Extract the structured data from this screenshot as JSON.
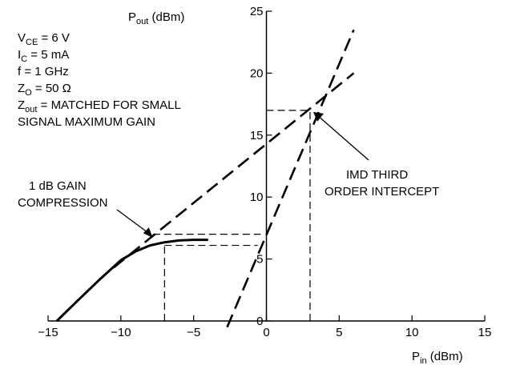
{
  "chart_data": {
    "type": "line",
    "title": "",
    "ylabel": {
      "main": "P",
      "sub": "out",
      "unit": " (dBm)"
    },
    "xlabel": {
      "main": "P",
      "sub": "in",
      "unit": " (dBm)"
    },
    "xlim": [
      -15,
      15
    ],
    "ylim": [
      0,
      25
    ],
    "x_ticks": [
      -15,
      -10,
      -5,
      0,
      5,
      10,
      15
    ],
    "x_tick_labels": [
      "−15",
      "−10",
      "−5",
      "0",
      "5",
      "10",
      "15"
    ],
    "y_ticks": [
      0,
      5,
      10,
      15,
      20,
      25
    ],
    "y_tick_labels": [
      "0",
      "5",
      "10",
      "15",
      "20",
      "25"
    ],
    "conditions": [
      {
        "main": "V",
        "sub": "CE",
        "rest": " = 6 V"
      },
      {
        "main": "I",
        "sub": "C",
        "rest": " = 5 mA"
      },
      {
        "main": "f = 1 GHz",
        "sub": "",
        "rest": ""
      },
      {
        "main": "Z",
        "sub": "O",
        "rest": " = 50 Ω"
      },
      {
        "main": "Z",
        "sub": "out",
        "rest": " = MATCHED FOR SMALL"
      },
      {
        "main": "SIGNAL MAXIMUM GAIN",
        "sub": "",
        "rest": ""
      }
    ],
    "annotations": {
      "compression": [
        "1 dB GAIN",
        "COMPRESSION"
      ],
      "intercept": [
        "IMD THIRD",
        "ORDER INTERCEPT"
      ]
    },
    "series": [
      {
        "style": "solid",
        "x": [
          -14.4,
          -13,
          -11.5,
          -10,
          -9,
          -8,
          -7,
          -6,
          -5,
          -4
        ],
        "y": [
          0,
          1.6,
          3.3,
          4.9,
          5.6,
          6.1,
          6.35,
          6.5,
          6.55,
          6.55
        ]
      },
      {
        "style": "dashed",
        "x": [
          -10.5,
          6
        ],
        "y": [
          4.3,
          20
        ]
      },
      {
        "style": "dashed",
        "x": [
          -2.7,
          6
        ],
        "y": [
          -0.5,
          23.5
        ]
      }
    ],
    "reference_lines": [
      {
        "x": [
          -7.8,
          -0.4
        ],
        "y": [
          7.0,
          7.0
        ]
      },
      {
        "x": [
          -7,
          -0.6
        ],
        "y": [
          6.1,
          6.1
        ]
      },
      {
        "x": [
          -7,
          -7
        ],
        "y": [
          0,
          6.1
        ]
      },
      {
        "x": [
          0,
          3
        ],
        "y": [
          17,
          17
        ]
      },
      {
        "x": [
          3,
          3
        ],
        "y": [
          0,
          17
        ]
      }
    ],
    "intercept_point": {
      "x": 3,
      "y": 17
    },
    "compression_point": {
      "x": -7.8,
      "y": 6.7
    }
  }
}
